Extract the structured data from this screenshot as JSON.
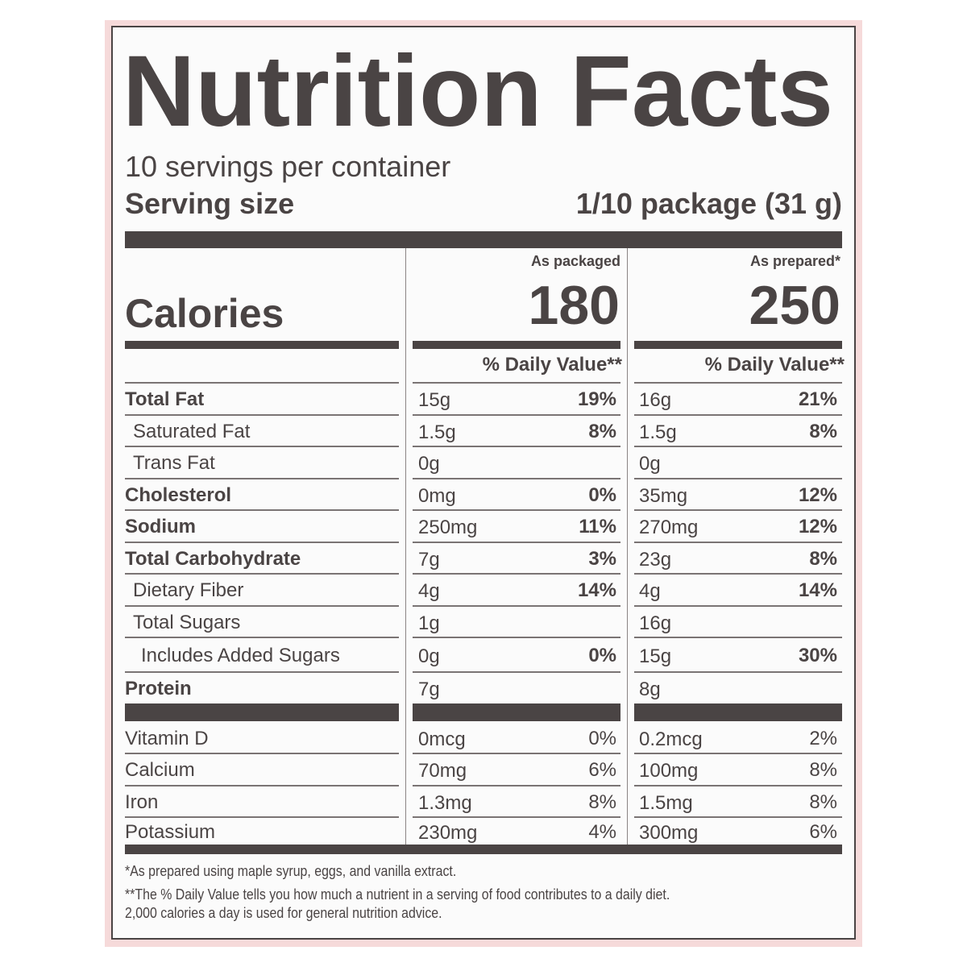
{
  "title": "Nutrition Facts",
  "servings_per_container": "10 servings per container",
  "serving_size_label": "Serving size",
  "serving_size_value": "1/10 package (31 g)",
  "calories_label": "Calories",
  "columns": [
    {
      "header": "As packaged",
      "calories": "180",
      "dv_header": "% Daily Value**"
    },
    {
      "header": "As prepared*",
      "calories": "250",
      "dv_header": "% Daily Value**"
    }
  ],
  "nutrients": [
    {
      "label": "Total Fat",
      "bold": true,
      "indent": 0,
      "a_amt": "15g",
      "a_pct": "19%",
      "b_amt": "16g",
      "b_pct": "21%"
    },
    {
      "label": "Saturated Fat",
      "bold": false,
      "indent": 1,
      "a_amt": "1.5g",
      "a_pct": "8%",
      "b_amt": "1.5g",
      "b_pct": "8%"
    },
    {
      "label": "Trans Fat",
      "bold": false,
      "indent": 1,
      "a_amt": "0g",
      "a_pct": "",
      "b_amt": "0g",
      "b_pct": ""
    },
    {
      "label": "Cholesterol",
      "bold": true,
      "indent": 0,
      "a_amt": "0mg",
      "a_pct": "0%",
      "b_amt": "35mg",
      "b_pct": "12%"
    },
    {
      "label": "Sodium",
      "bold": true,
      "indent": 0,
      "a_amt": "250mg",
      "a_pct": "11%",
      "b_amt": "270mg",
      "b_pct": "12%"
    },
    {
      "label": "Total Carbohydrate",
      "bold": true,
      "indent": 0,
      "a_amt": "7g",
      "a_pct": "3%",
      "b_amt": "23g",
      "b_pct": "8%"
    },
    {
      "label": "Dietary Fiber",
      "bold": false,
      "indent": 1,
      "a_amt": "4g",
      "a_pct": "14%",
      "b_amt": "4g",
      "b_pct": "14%"
    },
    {
      "label": "Total Sugars",
      "bold": false,
      "indent": 1,
      "a_amt": "1g",
      "a_pct": "",
      "b_amt": "16g",
      "b_pct": ""
    },
    {
      "label": "Includes Added Sugars",
      "bold": false,
      "indent": 2,
      "a_amt": "0g",
      "a_pct": "0%",
      "b_amt": "15g",
      "b_pct": "30%"
    },
    {
      "label": "Protein",
      "bold": true,
      "indent": 0,
      "a_amt": "7g",
      "a_pct": "",
      "b_amt": "8g",
      "b_pct": ""
    }
  ],
  "vitamins": [
    {
      "label": "Vitamin D",
      "a_amt": "0mcg",
      "a_pct": "0%",
      "b_amt": "0.2mcg",
      "b_pct": "2%"
    },
    {
      "label": "Calcium",
      "a_amt": "70mg",
      "a_pct": "6%",
      "b_amt": "100mg",
      "b_pct": "8%"
    },
    {
      "label": "Iron",
      "a_amt": "1.3mg",
      "a_pct": "8%",
      "b_amt": "1.5mg",
      "b_pct": "8%"
    },
    {
      "label": "Potassium",
      "a_amt": "230mg",
      "a_pct": "4%",
      "b_amt": "300mg",
      "b_pct": "6%"
    }
  ],
  "footnotes": [
    "*As prepared using maple syrup, eggs, and vanilla extract.",
    "**The % Daily Value tells you how much a nutrient in a serving of food contributes to a daily diet.",
    "2,000 calories a day is used for general nutrition advice."
  ],
  "colors": {
    "ink": "#4a4444",
    "border_pink": "#f6dada"
  }
}
